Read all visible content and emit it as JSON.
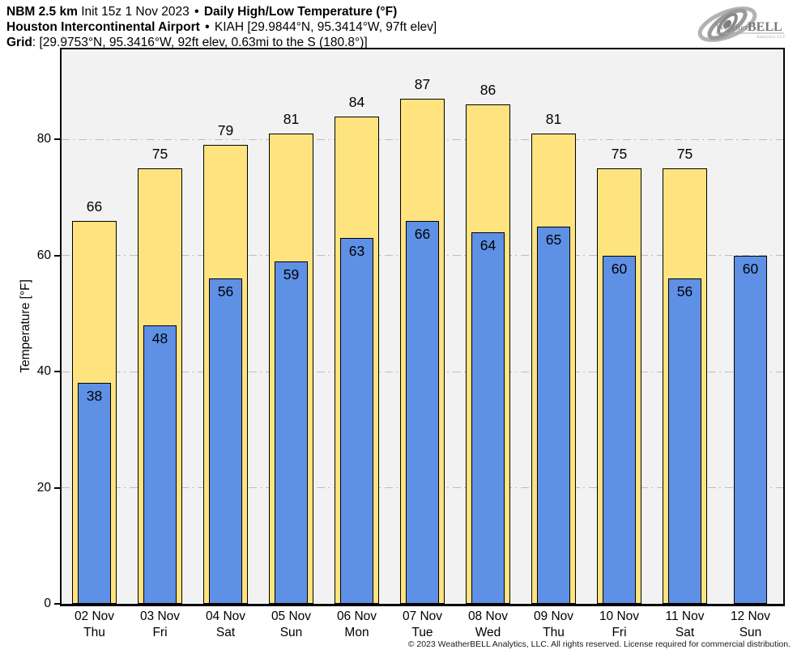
{
  "header": {
    "sep": "•",
    "line1": {
      "model": "NBM 2.5 km",
      "init": "Init 15z 1 Nov 2023",
      "product": "Daily High/Low Temperature (°F)"
    },
    "line2": {
      "station_name": "Houston Intercontinental Airport",
      "station_info": "KIAH [29.9844°N, 95.3414°W, 97ft elev]"
    },
    "line3": {
      "label": "Grid",
      "info": ": [29.9753°N, 95.3416°W, 92ft elev, 0.63mi to the S (180.8°)]"
    }
  },
  "logo": {
    "brand_weather": "Weather",
    "brand_bell": "BELL",
    "subtext": "Analytics LLC"
  },
  "chart_data": {
    "type": "bar",
    "title": "NBM 2.5 km Init 15z 1 Nov 2023 • Daily High/Low Temperature (°F)",
    "subtitle": "Houston Intercontinental Airport • KIAH",
    "ylabel": "Temperature [°F]",
    "xlabel": "",
    "ylim": [
      0,
      95.5
    ],
    "yticks": [
      0,
      20,
      40,
      60,
      80
    ],
    "grid": "horizontal dash-dot",
    "legend": "none",
    "categories": [
      {
        "date": "02 Nov",
        "day": "Thu"
      },
      {
        "date": "03 Nov",
        "day": "Fri"
      },
      {
        "date": "04 Nov",
        "day": "Sat"
      },
      {
        "date": "05 Nov",
        "day": "Sun"
      },
      {
        "date": "06 Nov",
        "day": "Mon"
      },
      {
        "date": "07 Nov",
        "day": "Tue"
      },
      {
        "date": "08 Nov",
        "day": "Wed"
      },
      {
        "date": "09 Nov",
        "day": "Thu"
      },
      {
        "date": "10 Nov",
        "day": "Fri"
      },
      {
        "date": "11 Nov",
        "day": "Sat"
      },
      {
        "date": "12 Nov",
        "day": "Sun"
      }
    ],
    "series": [
      {
        "name": "High",
        "color": "#FFE37E",
        "values": [
          66,
          75,
          79,
          81,
          84,
          87,
          86,
          81,
          75,
          75,
          null
        ]
      },
      {
        "name": "Low",
        "color": "#5E90E6",
        "values": [
          38,
          48,
          56,
          59,
          63,
          66,
          64,
          65,
          60,
          56,
          60
        ]
      }
    ]
  },
  "colors": {
    "plot_background": "#f2f2f2",
    "figure_background": "#ffffff",
    "bar_border": "#000000",
    "gridline": "#bdbdbd",
    "high_bar": "#FFE37E",
    "low_bar": "#5E90E6"
  },
  "footer": {
    "copyright": "© 2023 WeatherBELL Analytics, LLC. All rights reserved. License required for commercial distribution."
  }
}
